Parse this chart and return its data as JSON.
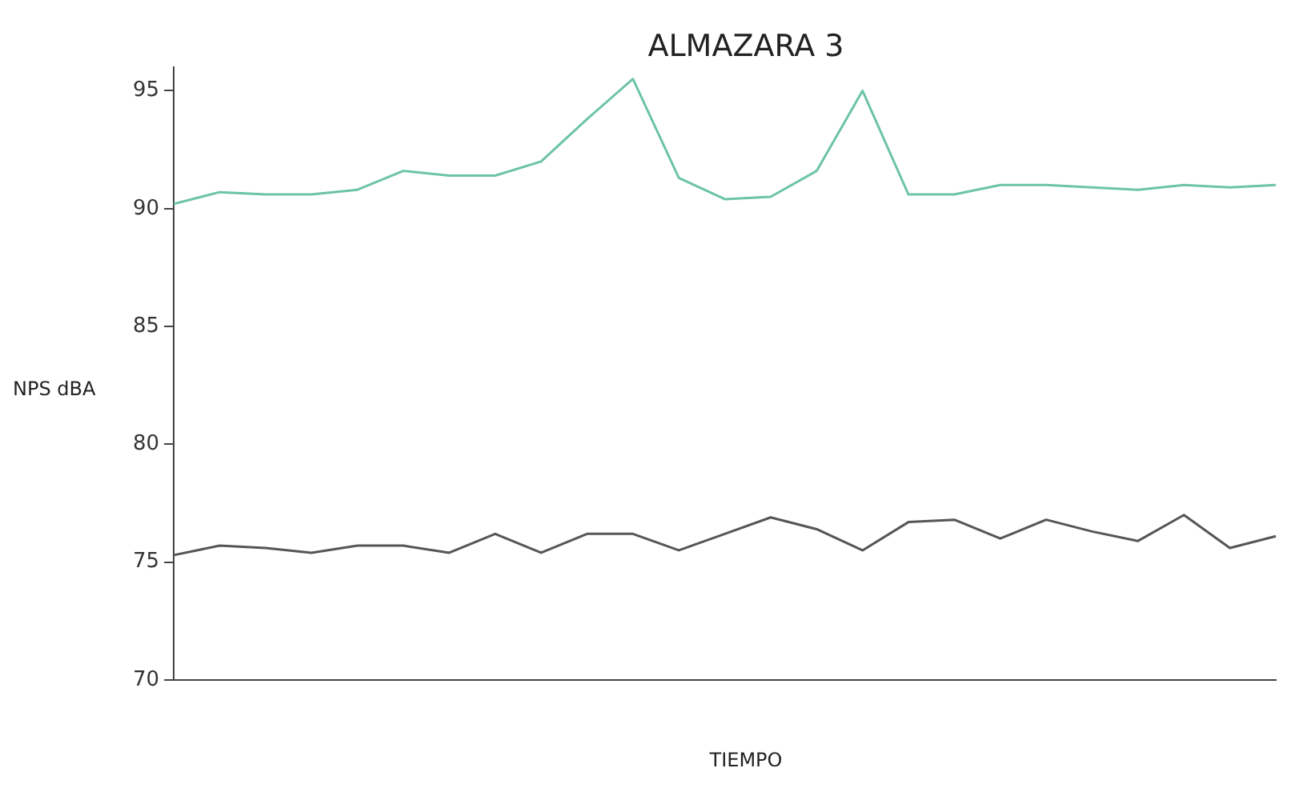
{
  "chart_data": {
    "type": "line",
    "title": "ALMAZARA 3",
    "xlabel": "TIEMPO",
    "ylabel": "NPS dBA",
    "categories": [
      null,
      null,
      null,
      null,
      null,
      null,
      null,
      null,
      null,
      null,
      null,
      null,
      null,
      null,
      null,
      null,
      null,
      null,
      null,
      null,
      null,
      null,
      null,
      null,
      null
    ],
    "series": [
      {
        "color": "#6cc4a4",
        "values": [
          90.2,
          90.7,
          90.6,
          90.6,
          90.8,
          91.6,
          91.4,
          91.4,
          92.0,
          93.8,
          95.5,
          91.3,
          90.4,
          90.5,
          91.6,
          95.0,
          90.6,
          90.6,
          91.0,
          91.0,
          90.9,
          90.8,
          91.0,
          90.9,
          91.0
        ]
      },
      {
        "color": "#555555",
        "values": [
          75.3,
          75.7,
          75.6,
          75.4,
          75.7,
          75.7,
          75.4,
          76.2,
          75.4,
          76.2,
          76.2,
          75.5,
          76.2,
          76.9,
          76.4,
          75.5,
          76.7,
          76.8,
          76.0,
          76.8,
          76.3,
          75.9,
          77.0,
          75.6,
          76.1
        ]
      }
    ],
    "ylim": [
      70,
      96
    ],
    "yticks": [
      70,
      75,
      80,
      85,
      90,
      95
    ],
    "grid": false,
    "legend": false,
    "marker": "none",
    "line_style": "solid",
    "tick_labels": "y"
  }
}
